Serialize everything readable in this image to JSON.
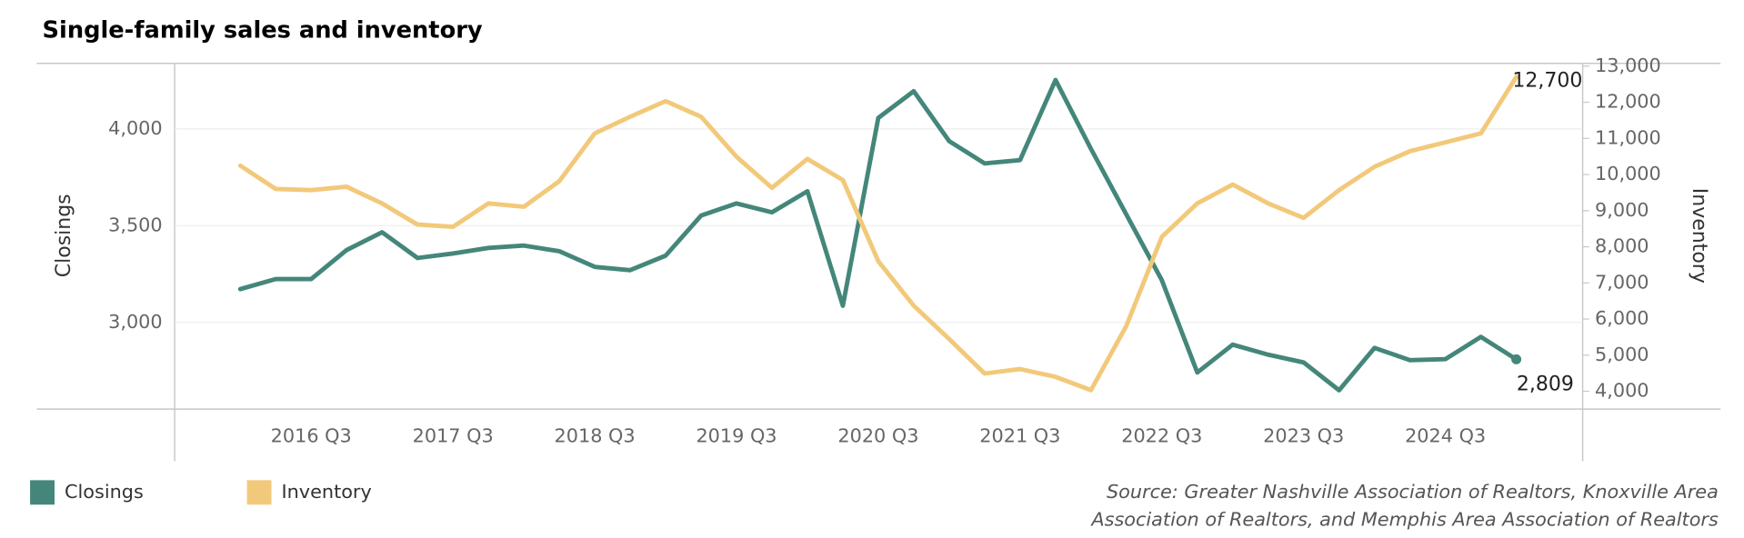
{
  "chart_data": {
    "type": "line",
    "title": "Single-family sales and inventory",
    "categories": [
      null,
      null,
      "2016 Q3",
      null,
      null,
      null,
      "2017 Q3",
      null,
      null,
      null,
      "2018 Q3",
      null,
      null,
      null,
      "2019 Q3",
      null,
      null,
      null,
      "2020 Q3",
      null,
      null,
      null,
      "2021 Q3",
      null,
      null,
      null,
      "2022 Q3",
      null,
      null,
      null,
      "2023 Q3",
      null,
      null,
      null,
      "2024 Q3",
      null,
      null
    ],
    "ylabel": "Closings",
    "y2label": "Inventory",
    "ylim": [
      2552,
      4339
    ],
    "yticks": [
      {
        "value": 3000,
        "label": "3,000"
      },
      {
        "value": 3500,
        "label": "3,500"
      },
      {
        "value": 4000,
        "label": "4,000"
      }
    ],
    "y2lim": [
      3508,
      13077
    ],
    "y2ticks": [
      {
        "value": 4000,
        "label": "4,000"
      },
      {
        "value": 5000,
        "label": "5,000"
      },
      {
        "value": 6000,
        "label": "6,000"
      },
      {
        "value": 7000,
        "label": "7,000"
      },
      {
        "value": 8000,
        "label": "8,000"
      },
      {
        "value": 9000,
        "label": "9,000"
      },
      {
        "value": 10000,
        "label": "10,000"
      },
      {
        "value": 11000,
        "label": "11,000"
      },
      {
        "value": 12000,
        "label": "12,000"
      },
      {
        "value": 13000,
        "label": "13,000"
      }
    ],
    "grid": true,
    "legend": "bottom-left",
    "series": [
      {
        "name": "Closings",
        "color": "#44877a",
        "axis": "y",
        "values": [
          3172,
          3224,
          3224,
          3374,
          3466,
          3333,
          3356,
          3385,
          3397,
          3368,
          3287,
          3270,
          3345,
          3552,
          3615,
          3569,
          3678,
          3086,
          4057,
          4195,
          3937,
          3822,
          3839,
          4253,
          3897,
          3557,
          3218,
          2741,
          2885,
          2833,
          2793,
          2649,
          2868,
          2805,
          2810,
          2925,
          2809
        ],
        "value_labels": [
          null,
          null,
          null,
          null,
          null,
          null,
          null,
          null,
          null,
          null,
          null,
          null,
          null,
          null,
          null,
          null,
          null,
          null,
          null,
          null,
          null,
          null,
          null,
          null,
          null,
          null,
          null,
          null,
          null,
          null,
          null,
          null,
          null,
          null,
          null,
          null,
          "2,809"
        ]
      },
      {
        "name": "Inventory",
        "color": "#f2c97a",
        "axis": "y2",
        "values": [
          10246,
          9600,
          9569,
          9662,
          9200,
          8615,
          8554,
          9200,
          9108,
          9815,
          11138,
          11600,
          12031,
          11600,
          10492,
          9631,
          10431,
          9846,
          7600,
          6369,
          5446,
          4492,
          4615,
          4400,
          4031,
          5815,
          8277,
          9200,
          9723,
          9200,
          8800,
          9569,
          10215,
          10646,
          10892,
          11138,
          12700
        ],
        "value_labels": [
          null,
          null,
          null,
          null,
          null,
          null,
          null,
          null,
          null,
          null,
          null,
          null,
          null,
          null,
          null,
          null,
          null,
          null,
          null,
          null,
          null,
          null,
          null,
          null,
          null,
          null,
          null,
          null,
          null,
          null,
          null,
          null,
          null,
          null,
          null,
          null,
          "12,700"
        ]
      }
    ],
    "source": [
      "Source: Greater Nashville Association of Realtors, Knoxville Area",
      "Association of Realtors, and Memphis Area Association of Realtors"
    ]
  }
}
